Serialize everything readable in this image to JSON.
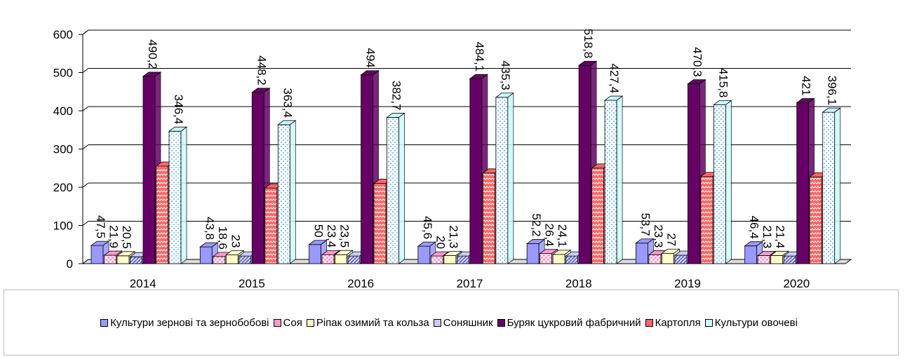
{
  "chart_data": {
    "type": "bar3d",
    "categories": [
      "2014",
      "2015",
      "2016",
      "2017",
      "2018",
      "2019",
      "2020"
    ],
    "series": [
      {
        "name": "Культури зернові та зернобобові",
        "color": "#9999ff",
        "values": [
          47.5,
          43.8,
          50,
          45.6,
          52.2,
          53.7,
          46.4
        ],
        "value_labels": [
          "47,5",
          "43,8",
          "50",
          "45,6",
          "52,2",
          "53,7",
          "46,4"
        ]
      },
      {
        "name": "Соя",
        "color": "#ff99cc",
        "values": [
          21.9,
          18.6,
          23.4,
          20,
          26.4,
          23.3,
          21.3
        ],
        "value_labels": [
          "21,9",
          "18,6",
          "23,4",
          "20",
          "26,4",
          "23,3",
          "21,3"
        ]
      },
      {
        "name": "Ріпак озимий та кольза",
        "color": "#ffffcc",
        "values": [
          20.5,
          23,
          23.5,
          21.3,
          24.1,
          27,
          21.4
        ],
        "value_labels": [
          "20,5",
          "23",
          "23,5",
          "21,3",
          "24,1",
          "27",
          "21,4"
        ]
      },
      {
        "name": "Соняшник",
        "color": "#ccccff",
        "values": [
          18,
          20,
          20,
          20,
          20,
          22,
          20
        ],
        "value_labels": [
          null,
          null,
          null,
          null,
          null,
          null,
          null
        ]
      },
      {
        "name": "Буряк цукровий фабричний",
        "color": "#660066",
        "values": [
          490.2,
          448.2,
          494,
          484.1,
          518.8,
          470.3,
          421
        ],
        "value_labels": [
          "490,2",
          "448,2",
          "494",
          "484,1",
          "518,8",
          "470,3",
          "421"
        ]
      },
      {
        "name": "Картопля",
        "color": "#ff6666",
        "values": [
          255,
          198,
          210,
          237,
          250,
          228,
          227
        ],
        "value_labels": [
          null,
          null,
          null,
          null,
          null,
          null,
          null
        ]
      },
      {
        "name": "Культури овочеві",
        "color": "#ccffff",
        "values": [
          346.4,
          363.4,
          382.7,
          435.3,
          427.4,
          415.8,
          396.1
        ],
        "value_labels": [
          "346,4",
          "363,4",
          "382,7",
          "435,3",
          "427,4",
          "415,8",
          "396,1"
        ]
      }
    ],
    "ylim": [
      0,
      600
    ],
    "yticks": [
      0,
      100,
      200,
      300,
      400,
      500,
      600
    ],
    "grid": true
  }
}
